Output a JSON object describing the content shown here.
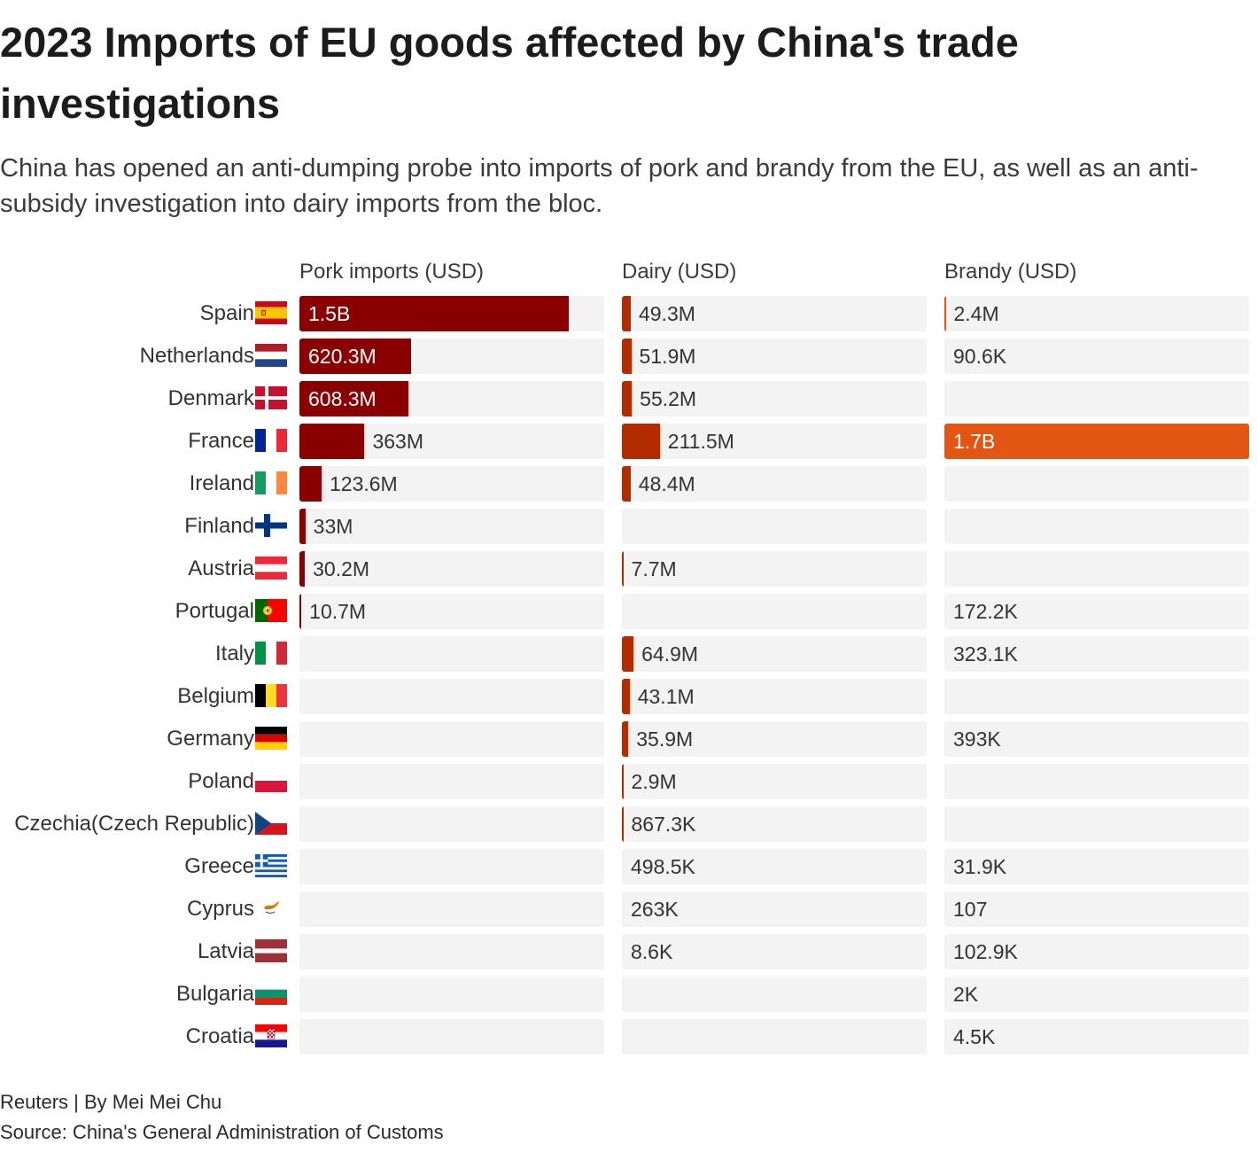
{
  "chart_data": {
    "type": "bar",
    "orientation": "horizontal",
    "title": "2023 Imports of EU goods affected by China's trade investigations",
    "subtitle": "China has opened an anti-dumping probe into imports of pork and brandy from the EU, as well as an anti-subsidy investigation into dairy imports from the bloc.",
    "xlabel": "",
    "ylabel": "",
    "xlim": [
      0,
      1700000000
    ],
    "grid": false,
    "legend": "none",
    "track_color": "#f3f3f3",
    "categories": [
      "Spain",
      "Netherlands",
      "Denmark",
      "France",
      "Ireland",
      "Finland",
      "Austria",
      "Portugal",
      "Italy",
      "Belgium",
      "Germany",
      "Poland",
      "Czechia(Czech Republic)",
      "Greece",
      "Cyprus",
      "Latvia",
      "Bulgaria",
      "Croatia"
    ],
    "category_icons": [
      "spain-flag-icon",
      "netherlands-flag-icon",
      "denmark-flag-icon",
      "france-flag-icon",
      "ireland-flag-icon",
      "finland-flag-icon",
      "austria-flag-icon",
      "portugal-flag-icon",
      "italy-flag-icon",
      "belgium-flag-icon",
      "germany-flag-icon",
      "poland-flag-icon",
      "czechia-flag-icon",
      "greece-flag-icon",
      "cyprus-flag-icon",
      "latvia-flag-icon",
      "bulgaria-flag-icon",
      "croatia-flag-icon"
    ],
    "series": [
      {
        "name": "Pork imports (USD)",
        "color": "#8a0000",
        "values": [
          1500000000,
          620300000,
          608300000,
          363000000,
          123600000,
          33000000,
          30200000,
          10700000,
          null,
          null,
          null,
          null,
          null,
          null,
          null,
          null,
          null,
          null
        ],
        "labels": [
          "1.5B",
          "620.3M",
          "608.3M",
          "363M",
          "123.6M",
          "33M",
          "30.2M",
          "10.7M",
          null,
          null,
          null,
          null,
          null,
          null,
          null,
          null,
          null,
          null
        ]
      },
      {
        "name": "Dairy (USD)",
        "color": "#b32c00",
        "values": [
          49300000,
          51900000,
          55200000,
          211500000,
          48400000,
          null,
          7700000,
          null,
          64900000,
          43100000,
          35900000,
          2900000,
          867300,
          498500,
          263000,
          8600,
          null,
          null
        ],
        "labels": [
          "49.3M",
          "51.9M",
          "55.2M",
          "211.5M",
          "48.4M",
          null,
          "7.7M",
          null,
          "64.9M",
          "43.1M",
          "35.9M",
          "2.9M",
          "867.3K",
          "498.5K",
          "263K",
          "8.6K",
          null,
          null
        ]
      },
      {
        "name": "Brandy (USD)",
        "color": "#e35512",
        "values": [
          2400000,
          90600,
          null,
          1700000000,
          null,
          null,
          null,
          172200,
          323100,
          null,
          393000,
          null,
          null,
          31900,
          107,
          102900,
          2000,
          4500
        ],
        "labels": [
          "2.4M",
          "90.6K",
          null,
          "1.7B",
          null,
          null,
          null,
          "172.2K",
          "323.1K",
          null,
          "393K",
          null,
          null,
          "31.9K",
          "107",
          "102.9K",
          "2K",
          "4.5K"
        ]
      }
    ]
  },
  "footer": {
    "credit": "Reuters | By Mei Mei Chu",
    "source": "Source: China's General Administration of Customs"
  }
}
